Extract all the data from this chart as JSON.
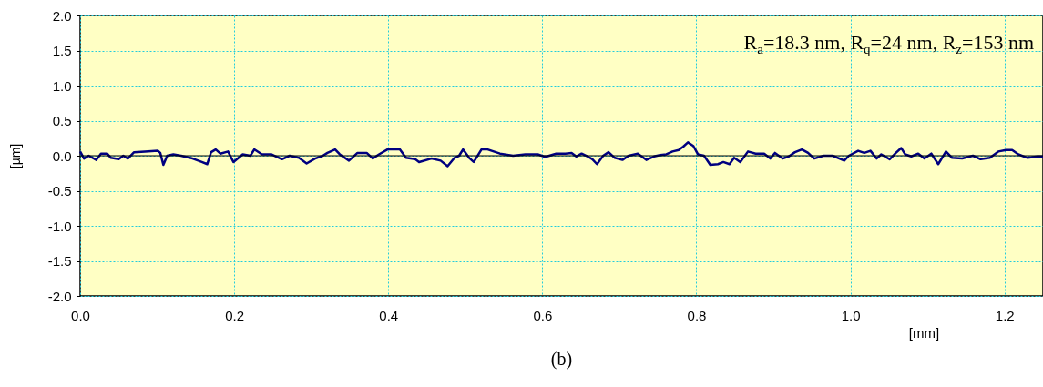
{
  "chart_data": {
    "type": "line",
    "title": "(b)",
    "xlabel": "[mm]",
    "ylabel": "[µm]",
    "annotations": [
      "R$_{a}$=18.3 nm, R$_{q}$=24 nm, R$_{z}$=153 nm"
    ],
    "x": [
      0.0,
      0.005,
      0.011,
      0.021,
      0.027,
      0.035,
      0.04,
      0.05,
      0.056,
      0.062,
      0.07,
      0.084,
      0.101,
      0.104,
      0.108,
      0.113,
      0.121,
      0.131,
      0.146,
      0.158,
      0.165,
      0.17,
      0.176,
      0.182,
      0.192,
      0.199,
      0.211,
      0.221,
      0.226,
      0.236,
      0.248,
      0.262,
      0.272,
      0.284,
      0.294,
      0.305,
      0.315,
      0.321,
      0.331,
      0.337,
      0.349,
      0.36,
      0.372,
      0.38,
      0.388,
      0.399,
      0.407,
      0.415,
      0.423,
      0.435,
      0.44,
      0.456,
      0.468,
      0.477,
      0.486,
      0.492,
      0.497,
      0.505,
      0.511,
      0.521,
      0.529,
      0.545,
      0.562,
      0.578,
      0.594,
      0.602,
      0.606,
      0.618,
      0.63,
      0.638,
      0.644,
      0.651,
      0.659,
      0.665,
      0.671,
      0.679,
      0.686,
      0.694,
      0.704,
      0.712,
      0.724,
      0.735,
      0.745,
      0.753,
      0.761,
      0.769,
      0.777,
      0.783,
      0.789,
      0.796,
      0.802,
      0.81,
      0.818,
      0.828,
      0.835,
      0.843,
      0.849,
      0.857,
      0.867,
      0.877,
      0.888,
      0.896,
      0.902,
      0.912,
      0.92,
      0.928,
      0.937,
      0.945,
      0.953,
      0.965,
      0.977,
      0.992,
      0.998,
      1.01,
      1.018,
      1.026,
      1.034,
      1.04,
      1.051,
      1.059,
      1.066,
      1.071,
      1.079,
      1.088,
      1.096,
      1.105,
      1.114,
      1.124,
      1.132,
      1.145,
      1.159,
      1.169,
      1.181,
      1.192,
      1.202,
      1.21,
      1.218,
      1.23,
      1.243,
      1.25
    ],
    "series": [
      {
        "color": "#000080",
        "values": [
          0.06,
          -0.04,
          0.0,
          -0.06,
          0.03,
          0.03,
          -0.03,
          -0.05,
          0.0,
          -0.04,
          0.05,
          0.06,
          0.07,
          0.04,
          -0.13,
          0.0,
          0.02,
          0.0,
          -0.04,
          -0.09,
          -0.12,
          0.05,
          0.09,
          0.03,
          0.06,
          -0.09,
          0.02,
          0.0,
          0.09,
          0.02,
          0.02,
          -0.05,
          0.0,
          -0.03,
          -0.11,
          -0.04,
          0.0,
          0.04,
          0.09,
          0.02,
          -0.07,
          0.04,
          0.04,
          -0.04,
          0.02,
          0.09,
          0.09,
          0.09,
          -0.03,
          -0.05,
          -0.09,
          -0.04,
          -0.07,
          -0.15,
          -0.03,
          0.0,
          0.09,
          -0.03,
          -0.09,
          0.09,
          0.09,
          0.03,
          0.0,
          0.02,
          0.02,
          -0.01,
          -0.01,
          0.03,
          0.03,
          0.04,
          -0.01,
          0.03,
          -0.01,
          -0.05,
          -0.12,
          0.0,
          0.05,
          -0.03,
          -0.06,
          0.0,
          0.03,
          -0.06,
          -0.01,
          0.01,
          0.02,
          0.06,
          0.08,
          0.13,
          0.19,
          0.14,
          0.02,
          0.0,
          -0.13,
          -0.12,
          -0.09,
          -0.12,
          -0.03,
          -0.09,
          0.06,
          0.03,
          0.03,
          -0.04,
          0.04,
          -0.04,
          -0.01,
          0.05,
          0.09,
          0.04,
          -0.04,
          0.0,
          0.0,
          -0.07,
          0.0,
          0.07,
          0.04,
          0.07,
          -0.04,
          0.02,
          -0.05,
          0.04,
          0.11,
          0.02,
          -0.01,
          0.03,
          -0.04,
          0.03,
          -0.12,
          0.06,
          -0.03,
          -0.04,
          0.0,
          -0.05,
          -0.03,
          0.06,
          0.08,
          0.08,
          0.02,
          -0.03,
          -0.01,
          -0.01
        ]
      }
    ],
    "xlim": [
      0,
      1.25
    ],
    "ylim": [
      -2,
      2
    ],
    "xticks": [
      {
        "value": 0,
        "label": "0.0"
      },
      {
        "value": 0.2,
        "label": "0.2"
      },
      {
        "value": 0.4,
        "label": "0.4"
      },
      {
        "value": 0.6,
        "label": "0.6"
      },
      {
        "value": 0.8,
        "label": "0.8"
      },
      {
        "value": 1.0,
        "label": "1.0"
      },
      {
        "value": 1.2,
        "label": "1.2"
      }
    ],
    "yticks": [
      {
        "value": -2,
        "label": "-2.0"
      },
      {
        "value": -1.5,
        "label": "-1.5"
      },
      {
        "value": -1,
        "label": "-1.0"
      },
      {
        "value": -0.5,
        "label": "-0.5"
      },
      {
        "value": 0,
        "label": "0.0"
      },
      {
        "value": 0.5,
        "label": "0.5"
      },
      {
        "value": 1,
        "label": "1.0"
      },
      {
        "value": 1.5,
        "label": "1.5"
      },
      {
        "value": 2,
        "label": "2.0"
      }
    ],
    "ref_lines": [
      {
        "axis": "y",
        "value": 0,
        "color": "#000000"
      }
    ],
    "grid": true,
    "marker": "none",
    "line_style": "solid"
  }
}
